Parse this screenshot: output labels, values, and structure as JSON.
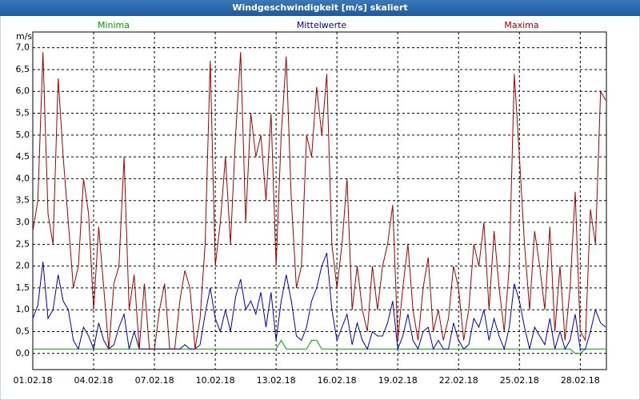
{
  "chart_data": {
    "type": "line",
    "title": "Windgeschwindigkeit [m/s] skaliert",
    "y_label": "m/s",
    "ylim": [
      -0.37,
      7.36
    ],
    "yticks": [
      {
        "value": 0,
        "label": "0,0"
      },
      {
        "value": 0.5,
        "label": "0,5"
      },
      {
        "value": 1,
        "label": "1,0"
      },
      {
        "value": 1.5,
        "label": "1,5"
      },
      {
        "value": 2,
        "label": "2,0"
      },
      {
        "value": 2.5,
        "label": "2,5"
      },
      {
        "value": 3,
        "label": "3,0"
      },
      {
        "value": 3.5,
        "label": "3,5"
      },
      {
        "value": 4,
        "label": "4,0"
      },
      {
        "value": 4.5,
        "label": "4,5"
      },
      {
        "value": 5,
        "label": "5,0"
      },
      {
        "value": 5.5,
        "label": "5,5"
      },
      {
        "value": 6,
        "label": "6,0"
      },
      {
        "value": 6.5,
        "label": "6,5"
      },
      {
        "value": 7,
        "label": "7,0"
      }
    ],
    "grid": true,
    "categories": [
      "01.02.18",
      null,
      null,
      null,
      null,
      null,
      null,
      null,
      null,
      null,
      null,
      null,
      "04.02.18",
      null,
      null,
      null,
      null,
      null,
      null,
      null,
      null,
      null,
      null,
      null,
      "07.02.18",
      null,
      null,
      null,
      null,
      null,
      null,
      null,
      null,
      null,
      null,
      null,
      "10.02.18",
      null,
      null,
      null,
      null,
      null,
      null,
      null,
      null,
      null,
      null,
      null,
      "13.02.18",
      null,
      null,
      null,
      null,
      null,
      null,
      null,
      null,
      null,
      null,
      null,
      "16.02.18",
      null,
      null,
      null,
      null,
      null,
      null,
      null,
      null,
      null,
      null,
      null,
      "19.02.18",
      null,
      null,
      null,
      null,
      null,
      null,
      null,
      null,
      null,
      null,
      null,
      "22.02.18",
      null,
      null,
      null,
      null,
      null,
      null,
      null,
      null,
      null,
      null,
      null,
      "25.02.18",
      null,
      null,
      null,
      null,
      null,
      null,
      null,
      null,
      null,
      null,
      null,
      "28.02.18",
      null,
      null,
      null,
      null,
      null
    ],
    "series": [
      {
        "name": "Minima",
        "color": "#00a000",
        "values": [
          0.1,
          0.1,
          0.1,
          0.1,
          0.1,
          0.1,
          0.1,
          0.1,
          0.1,
          0.1,
          0.1,
          0.1,
          0.1,
          0.1,
          0.1,
          0.1,
          0.1,
          0.1,
          0.1,
          0.1,
          0.1,
          0.1,
          0.1,
          0.1,
          0.1,
          0.1,
          0.1,
          0.1,
          0.1,
          0.1,
          0.1,
          0.1,
          0.1,
          0.1,
          0.1,
          0.1,
          0.1,
          0.1,
          0.1,
          0.1,
          0.1,
          0.1,
          0.1,
          0.1,
          0.1,
          0.1,
          0.1,
          0.1,
          0.1,
          0.3,
          0.1,
          0.1,
          0.1,
          0.1,
          0.1,
          0.3,
          0.3,
          0.1,
          0.1,
          0.1,
          0.1,
          0.1,
          0.1,
          0.1,
          0.1,
          0.1,
          0.1,
          0.1,
          0.1,
          0.1,
          0.1,
          0.1,
          0.1,
          0.1,
          0.1,
          0.1,
          0.1,
          0.1,
          0.1,
          0.1,
          0.1,
          0.1,
          0.1,
          0.1,
          0.1,
          0.1,
          0.1,
          0.1,
          0.1,
          0.1,
          0.1,
          0.1,
          0.1,
          0.1,
          0.1,
          0.1,
          0.1,
          0.1,
          0.1,
          0.1,
          0.1,
          0.1,
          0.1,
          0.1,
          0.1,
          0.1,
          0.1,
          0.0,
          0.0,
          0.1,
          0.1,
          0.1,
          0.1,
          0.1
        ]
      },
      {
        "name": "Mittelwerte",
        "color": "#0000b0",
        "values": [
          0.8,
          1.1,
          2.1,
          0.8,
          1.0,
          1.8,
          1.2,
          1.0,
          0.3,
          0.1,
          0.6,
          0.4,
          0.1,
          0.7,
          0.3,
          0.1,
          0.2,
          0.6,
          0.9,
          0.1,
          0.5,
          0.1,
          0.1,
          0.1,
          0.1,
          0.1,
          0.1,
          0.1,
          0.1,
          0.1,
          0.2,
          0.1,
          0.1,
          0.2,
          0.9,
          1.5,
          0.8,
          0.5,
          1.0,
          0.5,
          1.3,
          1.7,
          1.0,
          1.2,
          0.9,
          1.4,
          0.6,
          1.4,
          0.3,
          1.2,
          1.8,
          1.2,
          0.4,
          0.3,
          0.6,
          1.2,
          1.5,
          2.0,
          2.3,
          1.0,
          0.3,
          0.6,
          0.9,
          0.2,
          0.7,
          0.3,
          0.1,
          0.5,
          0.4,
          0.4,
          0.7,
          1.2,
          0.1,
          0.4,
          0.9,
          0.3,
          0.1,
          0.5,
          0.6,
          0.1,
          0.3,
          0.1,
          0.1,
          0.7,
          0.3,
          0.1,
          0.2,
          0.8,
          0.6,
          1.0,
          0.3,
          0.8,
          0.4,
          0.1,
          0.6,
          1.6,
          1.2,
          0.6,
          0.1,
          0.6,
          0.4,
          0.2,
          0.8,
          0.1,
          0.5,
          0.1,
          0.3,
          0.9,
          0.1,
          0.1,
          0.5,
          1.0,
          0.7,
          0.6
        ]
      },
      {
        "name": "Maxima",
        "color": "#a00000",
        "values": [
          2.8,
          3.5,
          6.9,
          3.2,
          2.5,
          6.3,
          4.5,
          3.0,
          1.5,
          2.0,
          4.0,
          3.2,
          1.0,
          2.9,
          1.5,
          0.1,
          1.6,
          2.0,
          4.5,
          1.0,
          1.8,
          0.1,
          1.6,
          0.1,
          0.1,
          1.0,
          1.6,
          0.1,
          0.1,
          1.2,
          1.9,
          1.5,
          0.1,
          0.8,
          2.5,
          6.7,
          2.0,
          3.0,
          4.5,
          2.5,
          5.0,
          6.9,
          3.0,
          5.5,
          4.5,
          5.0,
          3.5,
          5.5,
          2.0,
          5.0,
          6.8,
          3.5,
          1.5,
          2.0,
          5.0,
          4.5,
          6.1,
          5.0,
          6.4,
          2.5,
          1.5,
          2.5,
          4.0,
          1.0,
          2.0,
          1.0,
          0.5,
          2.0,
          1.0,
          2.0,
          2.5,
          3.4,
          0.3,
          1.5,
          2.5,
          1.0,
          0.3,
          1.5,
          2.2,
          0.5,
          1.0,
          0.3,
          0.8,
          2.0,
          1.5,
          0.3,
          1.0,
          2.5,
          2.0,
          3.0,
          1.0,
          2.8,
          1.5,
          0.5,
          2.0,
          6.4,
          4.5,
          2.5,
          1.0,
          2.8,
          2.0,
          1.0,
          2.9,
          0.5,
          2.0,
          0.3,
          1.5,
          3.7,
          0.5,
          0.3,
          3.3,
          2.5,
          6.0,
          5.8
        ]
      }
    ]
  }
}
